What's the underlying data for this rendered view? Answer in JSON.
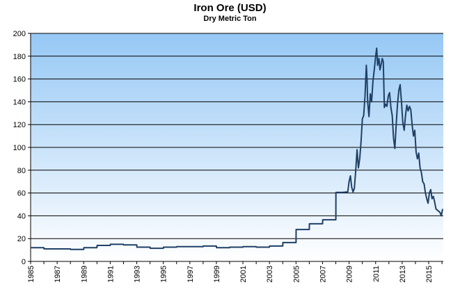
{
  "chart_data": {
    "type": "line",
    "title": "Iron Ore (USD)",
    "subtitle": "Dry Metric Ton",
    "xlabel": "",
    "ylabel": "",
    "xlim": [
      1985,
      2016.1
    ],
    "ylim": [
      0,
      200
    ],
    "y_ticks": [
      0,
      20,
      40,
      60,
      80,
      100,
      120,
      140,
      160,
      180,
      200
    ],
    "x_ticks": [
      1985,
      1987,
      1989,
      1991,
      1993,
      1995,
      1997,
      1999,
      2001,
      2003,
      2005,
      2007,
      2009,
      2011,
      2013,
      2015
    ],
    "grid": true,
    "legend": "none",
    "colors": {
      "line": "#1f3f66",
      "bg_top": "#96c8f5",
      "bg_bottom": "#ffffff",
      "grid": "#000000"
    },
    "series": [
      {
        "x": [
          1985,
          1986,
          1986.01,
          1988,
          1988.01,
          1989,
          1989.01,
          1990,
          1990.01,
          1991,
          1991.01,
          1992,
          1992.01,
          1993,
          1993.01,
          1994,
          1994.01,
          1995,
          1995.01,
          1996,
          1996.01,
          1997,
          1997.01,
          1998,
          1998.01,
          1999,
          1999.01,
          2000,
          2000.01,
          2001,
          2001.01,
          2002,
          2002.01,
          2003,
          2003.01,
          2004,
          2004.01,
          2005,
          2005.01,
          2006,
          2006.01,
          2007,
          2007.01,
          2008,
          2008.01,
          2008.5,
          2008.9,
          2009,
          2009.1,
          2009.2,
          2009.3,
          2009.4,
          2009.5,
          2009.6,
          2009.7,
          2009.8,
          2009.9,
          2010,
          2010.1,
          2010.2,
          2010.3,
          2010.35,
          2010.4,
          2010.5,
          2010.6,
          2010.7,
          2010.8,
          2010.9,
          2011,
          2011.08,
          2011.15,
          2011.25,
          2011.33,
          2011.4,
          2011.5,
          2011.58,
          2011.66,
          2011.75,
          2011.85,
          2011.95,
          2012.05,
          2012.15,
          2012.25,
          2012.35,
          2012.45,
          2012.55,
          2012.65,
          2012.75,
          2012.85,
          2012.95,
          2013.05,
          2013.15,
          2013.25,
          2013.35,
          2013.45,
          2013.55,
          2013.65,
          2013.75,
          2013.85,
          2013.95,
          2014.05,
          2014.15,
          2014.25,
          2014.35,
          2014.45,
          2014.55,
          2014.65,
          2014.75,
          2014.85,
          2014.95,
          2015.05,
          2015.15,
          2015.25,
          2015.35,
          2015.45,
          2015.55,
          2015.65,
          2015.75,
          2015.85,
          2015.95,
          2016.05
        ],
        "y": [
          12,
          12,
          11,
          11,
          10.5,
          10.5,
          12,
          12,
          14,
          14,
          15,
          15,
          14.5,
          14.5,
          12.5,
          12.5,
          11.5,
          11.5,
          12.5,
          12.5,
          13,
          13,
          13,
          13,
          13.5,
          13.5,
          12,
          12,
          12.5,
          12.5,
          13,
          13,
          12.5,
          12.5,
          13.5,
          13.5,
          16.5,
          16.5,
          28,
          28,
          33,
          33,
          36.5,
          36.5,
          60.5,
          60.5,
          61,
          70,
          75,
          65,
          61,
          64,
          80,
          98,
          82,
          90,
          105,
          125,
          128,
          145,
          172,
          160,
          140,
          127,
          147,
          140,
          158,
          168,
          180,
          187,
          172,
          178,
          168,
          172,
          178,
          175,
          135,
          138,
          136,
          145,
          148,
          135,
          128,
          108,
          99,
          120,
          138,
          150,
          155,
          140,
          122,
          115,
          128,
          137,
          132,
          136,
          133,
          120,
          110,
          115,
          96,
          90,
          95,
          82,
          78,
          70,
          68,
          60,
          55,
          51,
          60,
          63,
          55,
          57,
          52,
          46,
          45,
          44,
          43,
          40,
          46
        ]
      }
    ]
  }
}
